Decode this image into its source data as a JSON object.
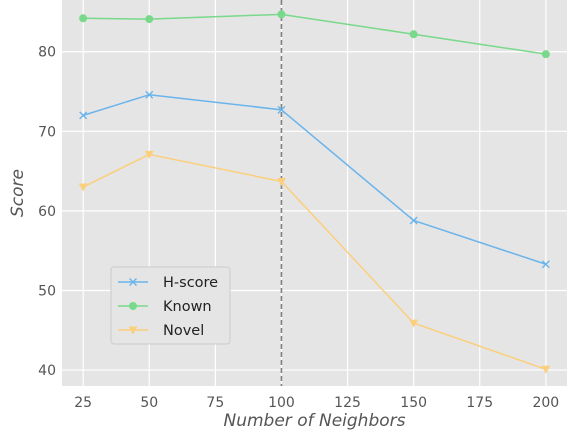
{
  "chart_data": {
    "type": "line",
    "title": "",
    "xlabel": "Number of Neighbors",
    "ylabel": "Score",
    "x": [
      25,
      50,
      100,
      150,
      200
    ],
    "xlim": [
      17,
      208
    ],
    "ylim": [
      38,
      86.5
    ],
    "xticks": [
      25,
      50,
      75,
      100,
      125,
      150,
      175,
      200
    ],
    "yticks": [
      40,
      50,
      60,
      70,
      80
    ],
    "xtick_labels": [
      "25",
      "50",
      "75",
      "100",
      "125",
      "150",
      "175",
      "200"
    ],
    "ytick_labels": [
      "40",
      "50",
      "60",
      "70",
      "80"
    ],
    "grid": true,
    "legend_position": "lower-left",
    "reference_line": {
      "x": 100,
      "style": "dashed",
      "color": "#808080"
    },
    "series": [
      {
        "name": "H-score",
        "values": [
          72.0,
          74.6,
          72.7,
          58.8,
          53.3
        ],
        "color": "#6ab4ec",
        "marker": "x"
      },
      {
        "name": "Known",
        "values": [
          84.2,
          84.1,
          84.7,
          82.2,
          79.7
        ],
        "color": "#79d98a",
        "marker": "circle"
      },
      {
        "name": "Novel",
        "values": [
          63.0,
          67.1,
          63.7,
          45.9,
          40.1
        ],
        "color": "#fbcf7c",
        "marker": "triangle-down"
      }
    ]
  }
}
